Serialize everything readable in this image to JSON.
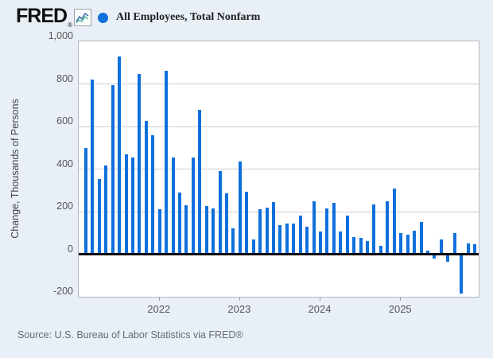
{
  "header": {
    "logo_text": "FRED",
    "registered_mark": "®",
    "series_title": "All Employees, Total Nonfarm"
  },
  "y_axis": {
    "title": "Change, Thousands of Persons",
    "tick_labels": [
      "1,000",
      "800",
      "600",
      "400",
      "200",
      "0",
      "-200"
    ],
    "tick_values": [
      1000,
      800,
      600,
      400,
      200,
      0,
      -200
    ]
  },
  "x_axis": {
    "tick_labels": [
      "2022",
      "2023",
      "2024",
      "2025"
    ]
  },
  "source_note": "Source: U.S. Bureau of Labor Statistics via FRED®",
  "colors": {
    "bar": "#0f70dc",
    "legend_marker": "#0f70dc",
    "background": "#e9eff7",
    "plot_background": "#ffffff",
    "gridline": "#cfcfcf",
    "zero_line": "#000000",
    "axis_text": "#555555",
    "source_text": "#666b70",
    "logo_icon_line1": "#3b6fb6",
    "logo_icon_line2": "#67c1a3"
  },
  "chart_data": {
    "type": "bar",
    "title": "All Employees, Total Nonfarm",
    "ylabel": "Change, Thousands of Persons",
    "units": "Thousands of Persons",
    "frequency": "Monthly",
    "ylim": [
      -200,
      1000
    ],
    "gridline_values": [
      800,
      600,
      400,
      200
    ],
    "zero_line": 0,
    "legend_position": "top",
    "x": [
      "2021-02",
      "2021-03",
      "2021-04",
      "2021-05",
      "2021-06",
      "2021-07",
      "2021-08",
      "2021-09",
      "2021-10",
      "2021-11",
      "2021-12",
      "2022-01",
      "2022-02",
      "2022-03",
      "2022-04",
      "2022-05",
      "2022-06",
      "2022-07",
      "2022-08",
      "2022-09",
      "2022-10",
      "2022-11",
      "2022-12",
      "2023-01",
      "2023-02",
      "2023-03",
      "2023-04",
      "2023-05",
      "2023-06",
      "2023-07",
      "2023-08",
      "2023-09",
      "2023-10",
      "2023-11",
      "2023-12",
      "2024-01",
      "2024-02",
      "2024-03",
      "2024-04",
      "2024-05",
      "2024-06",
      "2024-07",
      "2024-08",
      "2024-09",
      "2024-10",
      "2024-11",
      "2024-12",
      "2025-01",
      "2025-02",
      "2025-03",
      "2025-04",
      "2025-05",
      "2025-06",
      "2025-07",
      "2025-08",
      "2025-09",
      "2025-10",
      "2025-11",
      "2025-12"
    ],
    "values": [
      500,
      820,
      355,
      415,
      795,
      930,
      470,
      455,
      845,
      625,
      560,
      210,
      860,
      455,
      290,
      230,
      455,
      680,
      225,
      215,
      390,
      285,
      120,
      435,
      295,
      70,
      210,
      220,
      245,
      135,
      145,
      145,
      180,
      130,
      250,
      105,
      215,
      240,
      105,
      180,
      80,
      75,
      60,
      235,
      40,
      250,
      310,
      100,
      90,
      110,
      150,
      15,
      -20,
      70,
      -35,
      100,
      -185,
      50,
      45
    ]
  }
}
